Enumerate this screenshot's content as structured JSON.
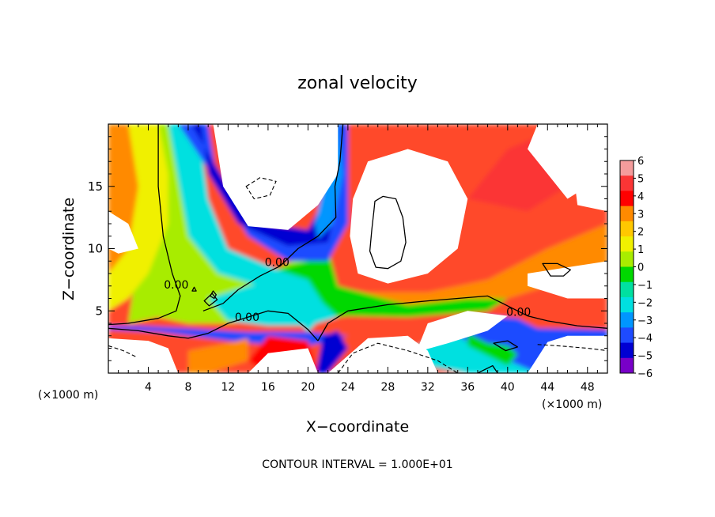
{
  "chart_data": {
    "type": "heatmap",
    "title": "zonal velocity",
    "xlabel": "X−coordinate",
    "ylabel": "Z−coordinate",
    "x_unit_label": "(×1000 m)",
    "y_unit_label": "(×1000 m)",
    "xlim": [
      0,
      50
    ],
    "ylim": [
      0,
      20
    ],
    "x_ticks": [
      4,
      8,
      12,
      16,
      20,
      24,
      28,
      32,
      36,
      40,
      44,
      48
    ],
    "y_ticks": [
      5,
      10,
      15
    ],
    "footer": "CONTOUR INTERVAL = 1.000E+01",
    "colorbar": {
      "ticks": [
        "6",
        "5",
        "4",
        "3",
        "2",
        "1",
        "0",
        "−1",
        "−2",
        "−3",
        "−4",
        "−5",
        "−6"
      ],
      "colors": [
        "#f49c9c",
        "#fb3535",
        "#ff0000",
        "#ff8a00",
        "#ffc800",
        "#f0f000",
        "#a8ec00",
        "#00d800",
        "#00e0a0",
        "#00e0e0",
        "#0096ff",
        "#1e4bff",
        "#0000d2",
        "#7800c8"
      ]
    },
    "contour_labels": [
      {
        "text": "0.00",
        "x": 16.9,
        "y": 8.6
      },
      {
        "text": "0.00",
        "x": 6.8,
        "y": 6.8
      },
      {
        "text": "0.00",
        "x": 13.9,
        "y": 4.2
      },
      {
        "text": "0.00",
        "x": 41.1,
        "y": 4.6
      }
    ]
  }
}
